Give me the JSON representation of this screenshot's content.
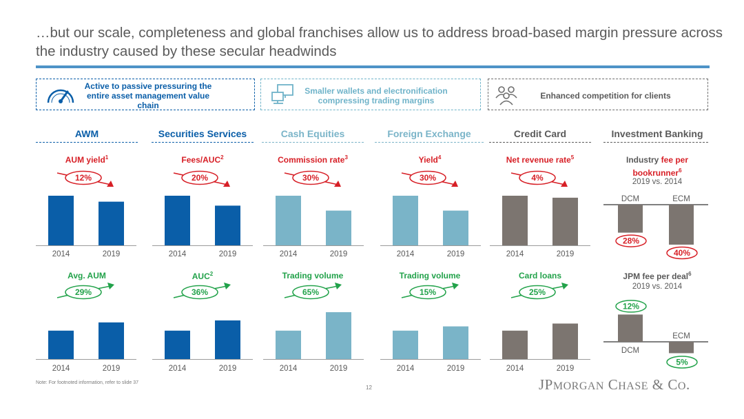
{
  "title": "…but our scale, completeness and global franchises allow us to address broad-based margin pressure across the industry caused by these secular headwinds",
  "banners": [
    {
      "text": "Active to passive pressuring the entire asset management value chain",
      "icon": "speedometer-icon",
      "color": "#0a5ea8"
    },
    {
      "text": "Smaller wallets and electronification compressing trading margins",
      "icon": "computer-icon",
      "color": "#6fb3c9"
    },
    {
      "text": "Enhanced competition for clients",
      "icon": "people-icon",
      "color": "#6d6d6d"
    }
  ],
  "columns": [
    {
      "header": "AWM",
      "color": "#0a5ea8"
    },
    {
      "header": "Securities Services",
      "color": "#0a5ea8"
    },
    {
      "header": "Cash Equities",
      "color": "#7ab4c8"
    },
    {
      "header": "Foreign Exchange",
      "color": "#7ab4c8"
    },
    {
      "header": "Credit Card",
      "color": "#5a5a5a"
    },
    {
      "header": "Investment Banking",
      "color": "#5a5a5a"
    }
  ],
  "colors": {
    "decline": "#d71f26",
    "growth": "#22a24a",
    "blue": "#0a5ea8",
    "lightblue": "#7ab4c8",
    "grey": "#7c7570"
  },
  "chart_data": [
    {
      "type": "bar",
      "title": "AUM yield",
      "footnote": "1",
      "categories": [
        "2014",
        "2019"
      ],
      "values": [
        100,
        88
      ],
      "change": "12%",
      "direction": "down"
    },
    {
      "type": "bar",
      "title": "Fees/AUC",
      "footnote": "2",
      "categories": [
        "2014",
        "2019"
      ],
      "values": [
        100,
        80
      ],
      "change": "20%",
      "direction": "down"
    },
    {
      "type": "bar",
      "title": "Commission rate",
      "footnote": "3",
      "categories": [
        "2014",
        "2019"
      ],
      "values": [
        100,
        70
      ],
      "change": "30%",
      "direction": "down"
    },
    {
      "type": "bar",
      "title": "Yield",
      "footnote": "4",
      "categories": [
        "2014",
        "2019"
      ],
      "values": [
        100,
        70
      ],
      "change": "30%",
      "direction": "down"
    },
    {
      "type": "bar",
      "title": "Net revenue rate",
      "footnote": "5",
      "categories": [
        "2014",
        "2019"
      ],
      "values": [
        100,
        96
      ],
      "change": "4%",
      "direction": "down"
    },
    {
      "type": "bar",
      "title": "Avg. AUM",
      "categories": [
        "2014",
        "2019"
      ],
      "values": [
        100,
        129
      ],
      "change": "29%",
      "direction": "up"
    },
    {
      "type": "bar",
      "title": "AUC",
      "footnote": "2",
      "categories": [
        "2014",
        "2019"
      ],
      "values": [
        100,
        136
      ],
      "change": "36%",
      "direction": "up"
    },
    {
      "type": "bar",
      "title": "Trading volume",
      "categories": [
        "2014",
        "2019"
      ],
      "values": [
        100,
        165
      ],
      "change": "65%",
      "direction": "up"
    },
    {
      "type": "bar",
      "title": "Trading volume",
      "categories": [
        "2014",
        "2019"
      ],
      "values": [
        100,
        115
      ],
      "change": "15%",
      "direction": "up"
    },
    {
      "type": "bar",
      "title": "Card loans",
      "categories": [
        "2014",
        "2019"
      ],
      "values": [
        100,
        125
      ],
      "change": "25%",
      "direction": "up"
    },
    {
      "type": "bar",
      "title_prefix": "Industry ",
      "title": "fee per bookrunner",
      "footnote": "6",
      "subtitle": "2019 vs. 2014",
      "categories": [
        "DCM",
        "ECM"
      ],
      "values": [
        -28,
        -40
      ],
      "labels": [
        "28%",
        "40%"
      ]
    },
    {
      "type": "bar",
      "title": "JPM fee per deal",
      "footnote": "6",
      "subtitle": "2019 vs. 2014",
      "categories": [
        "DCM",
        "ECM"
      ],
      "values": [
        12,
        -5
      ],
      "labels": [
        "12%",
        "5%"
      ]
    }
  ],
  "footer": {
    "note": "Note: For footnoted information, refer to slide 37",
    "page": "12",
    "logo": "JPMorgan Chase & Co."
  }
}
